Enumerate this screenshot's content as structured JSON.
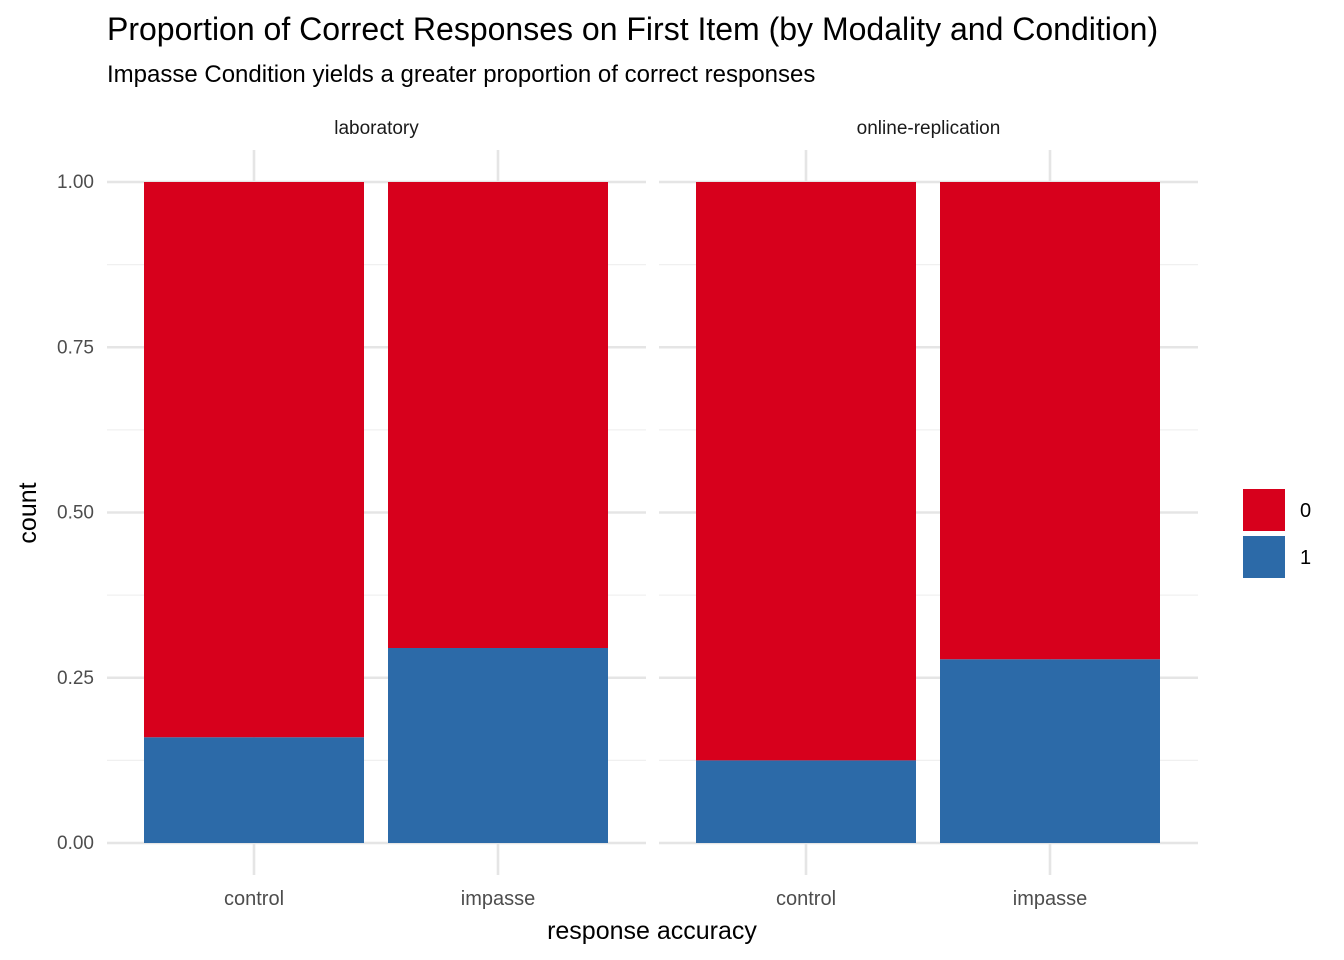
{
  "chart_data": {
    "type": "bar",
    "stacked": true,
    "title": "Proportion of Correct Responses on First Item (by Modality and Condition)",
    "subtitle": "Impasse Condition yields a greater proportion of correct responses",
    "xlabel": "response accuracy",
    "ylabel": "count",
    "ylim": [
      0,
      1
    ],
    "y_ticks": [
      "0.00",
      "0.25",
      "0.50",
      "0.75",
      "1.00"
    ],
    "grid": true,
    "legend_position": "right",
    "legend": [
      {
        "label": "0",
        "color": "#d7001c"
      },
      {
        "label": "1",
        "color": "#2c6aa8"
      }
    ],
    "facets": [
      {
        "name": "laboratory",
        "categories": [
          "control",
          "impasse"
        ],
        "series": [
          {
            "name": "1",
            "values": [
              0.16,
              0.295
            ]
          },
          {
            "name": "0",
            "values": [
              0.84,
              0.705
            ]
          }
        ]
      },
      {
        "name": "online-replication",
        "categories": [
          "control",
          "impasse"
        ],
        "series": [
          {
            "name": "1",
            "values": [
              0.125,
              0.278
            ]
          },
          {
            "name": "0",
            "values": [
              0.875,
              0.722
            ]
          }
        ]
      }
    ]
  }
}
